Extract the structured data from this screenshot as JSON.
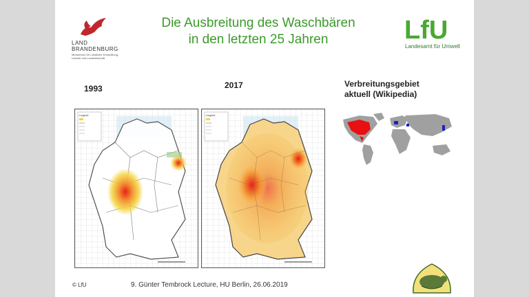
{
  "title_line1": "Die Ausbreitung des Waschbären",
  "title_line2": "in den letzten 25 Jahren",
  "left_logo": {
    "line1": "LAND",
    "line2": "BRANDENBURG",
    "small": "Ministerium für Ländliche Entwicklung, Umwelt und Landwirtschaft"
  },
  "right_logo": {
    "mark": "LfU",
    "sub": "Landesamt für Umwelt"
  },
  "map_labels": {
    "year1": "1993",
    "year2": "2017",
    "world_label_line1": "Verbreitungsgebiet",
    "world_label_line2": "aktuell (Wikipedia)"
  },
  "legend_title": "Legend",
  "footer": {
    "copyright": "© LfU",
    "text": "9. Günter Tembrock Lecture, HU Berlin, 26.06.2019"
  },
  "colors": {
    "title_green": "#3a9a2a",
    "heat_red": "#e8201a",
    "heat_yellow": "#f5d540",
    "range_red": "#e81010",
    "range_blue": "#2020c0"
  }
}
